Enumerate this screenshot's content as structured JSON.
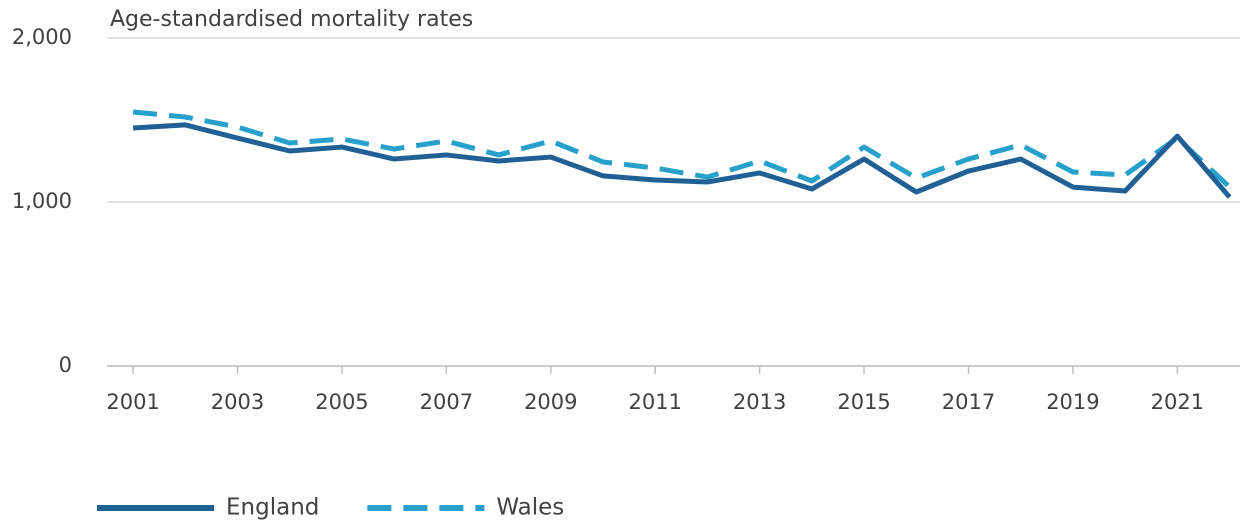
{
  "chart_data": {
    "type": "line",
    "title": "Age-standardised mortality rates",
    "x": [
      2001,
      2002,
      2003,
      2004,
      2005,
      2006,
      2007,
      2008,
      2009,
      2010,
      2011,
      2012,
      2013,
      2014,
      2015,
      2016,
      2017,
      2018,
      2019,
      2020,
      2021,
      2022
    ],
    "series": [
      {
        "name": "England",
        "color": "#206095",
        "dash": false,
        "values": [
          1451,
          1470,
          1390,
          1311,
          1335,
          1262,
          1287,
          1250,
          1274,
          1159,
          1134,
          1122,
          1177,
          1079,
          1262,
          1061,
          1189,
          1262,
          1091,
          1067,
          1402,
          1030
        ]
      },
      {
        "name": "Wales",
        "color": "#27a0cc",
        "dash": true,
        "values": [
          1549,
          1518,
          1457,
          1360,
          1384,
          1323,
          1372,
          1287,
          1372,
          1244,
          1207,
          1152,
          1250,
          1128,
          1335,
          1146,
          1262,
          1348,
          1183,
          1165,
          1390,
          1091
        ]
      }
    ],
    "xlim": [
      2000.5,
      2022.2
    ],
    "xticks": [
      2001,
      2003,
      2005,
      2007,
      2009,
      2011,
      2013,
      2015,
      2017,
      2019,
      2021
    ],
    "ylim": [
      0,
      2000
    ],
    "yticks": [
      0,
      {
        "value": 1000,
        "label": "1,000"
      },
      {
        "value": 2000,
        "label": "2,000"
      }
    ],
    "grid": true,
    "legend": "bottom-left"
  }
}
